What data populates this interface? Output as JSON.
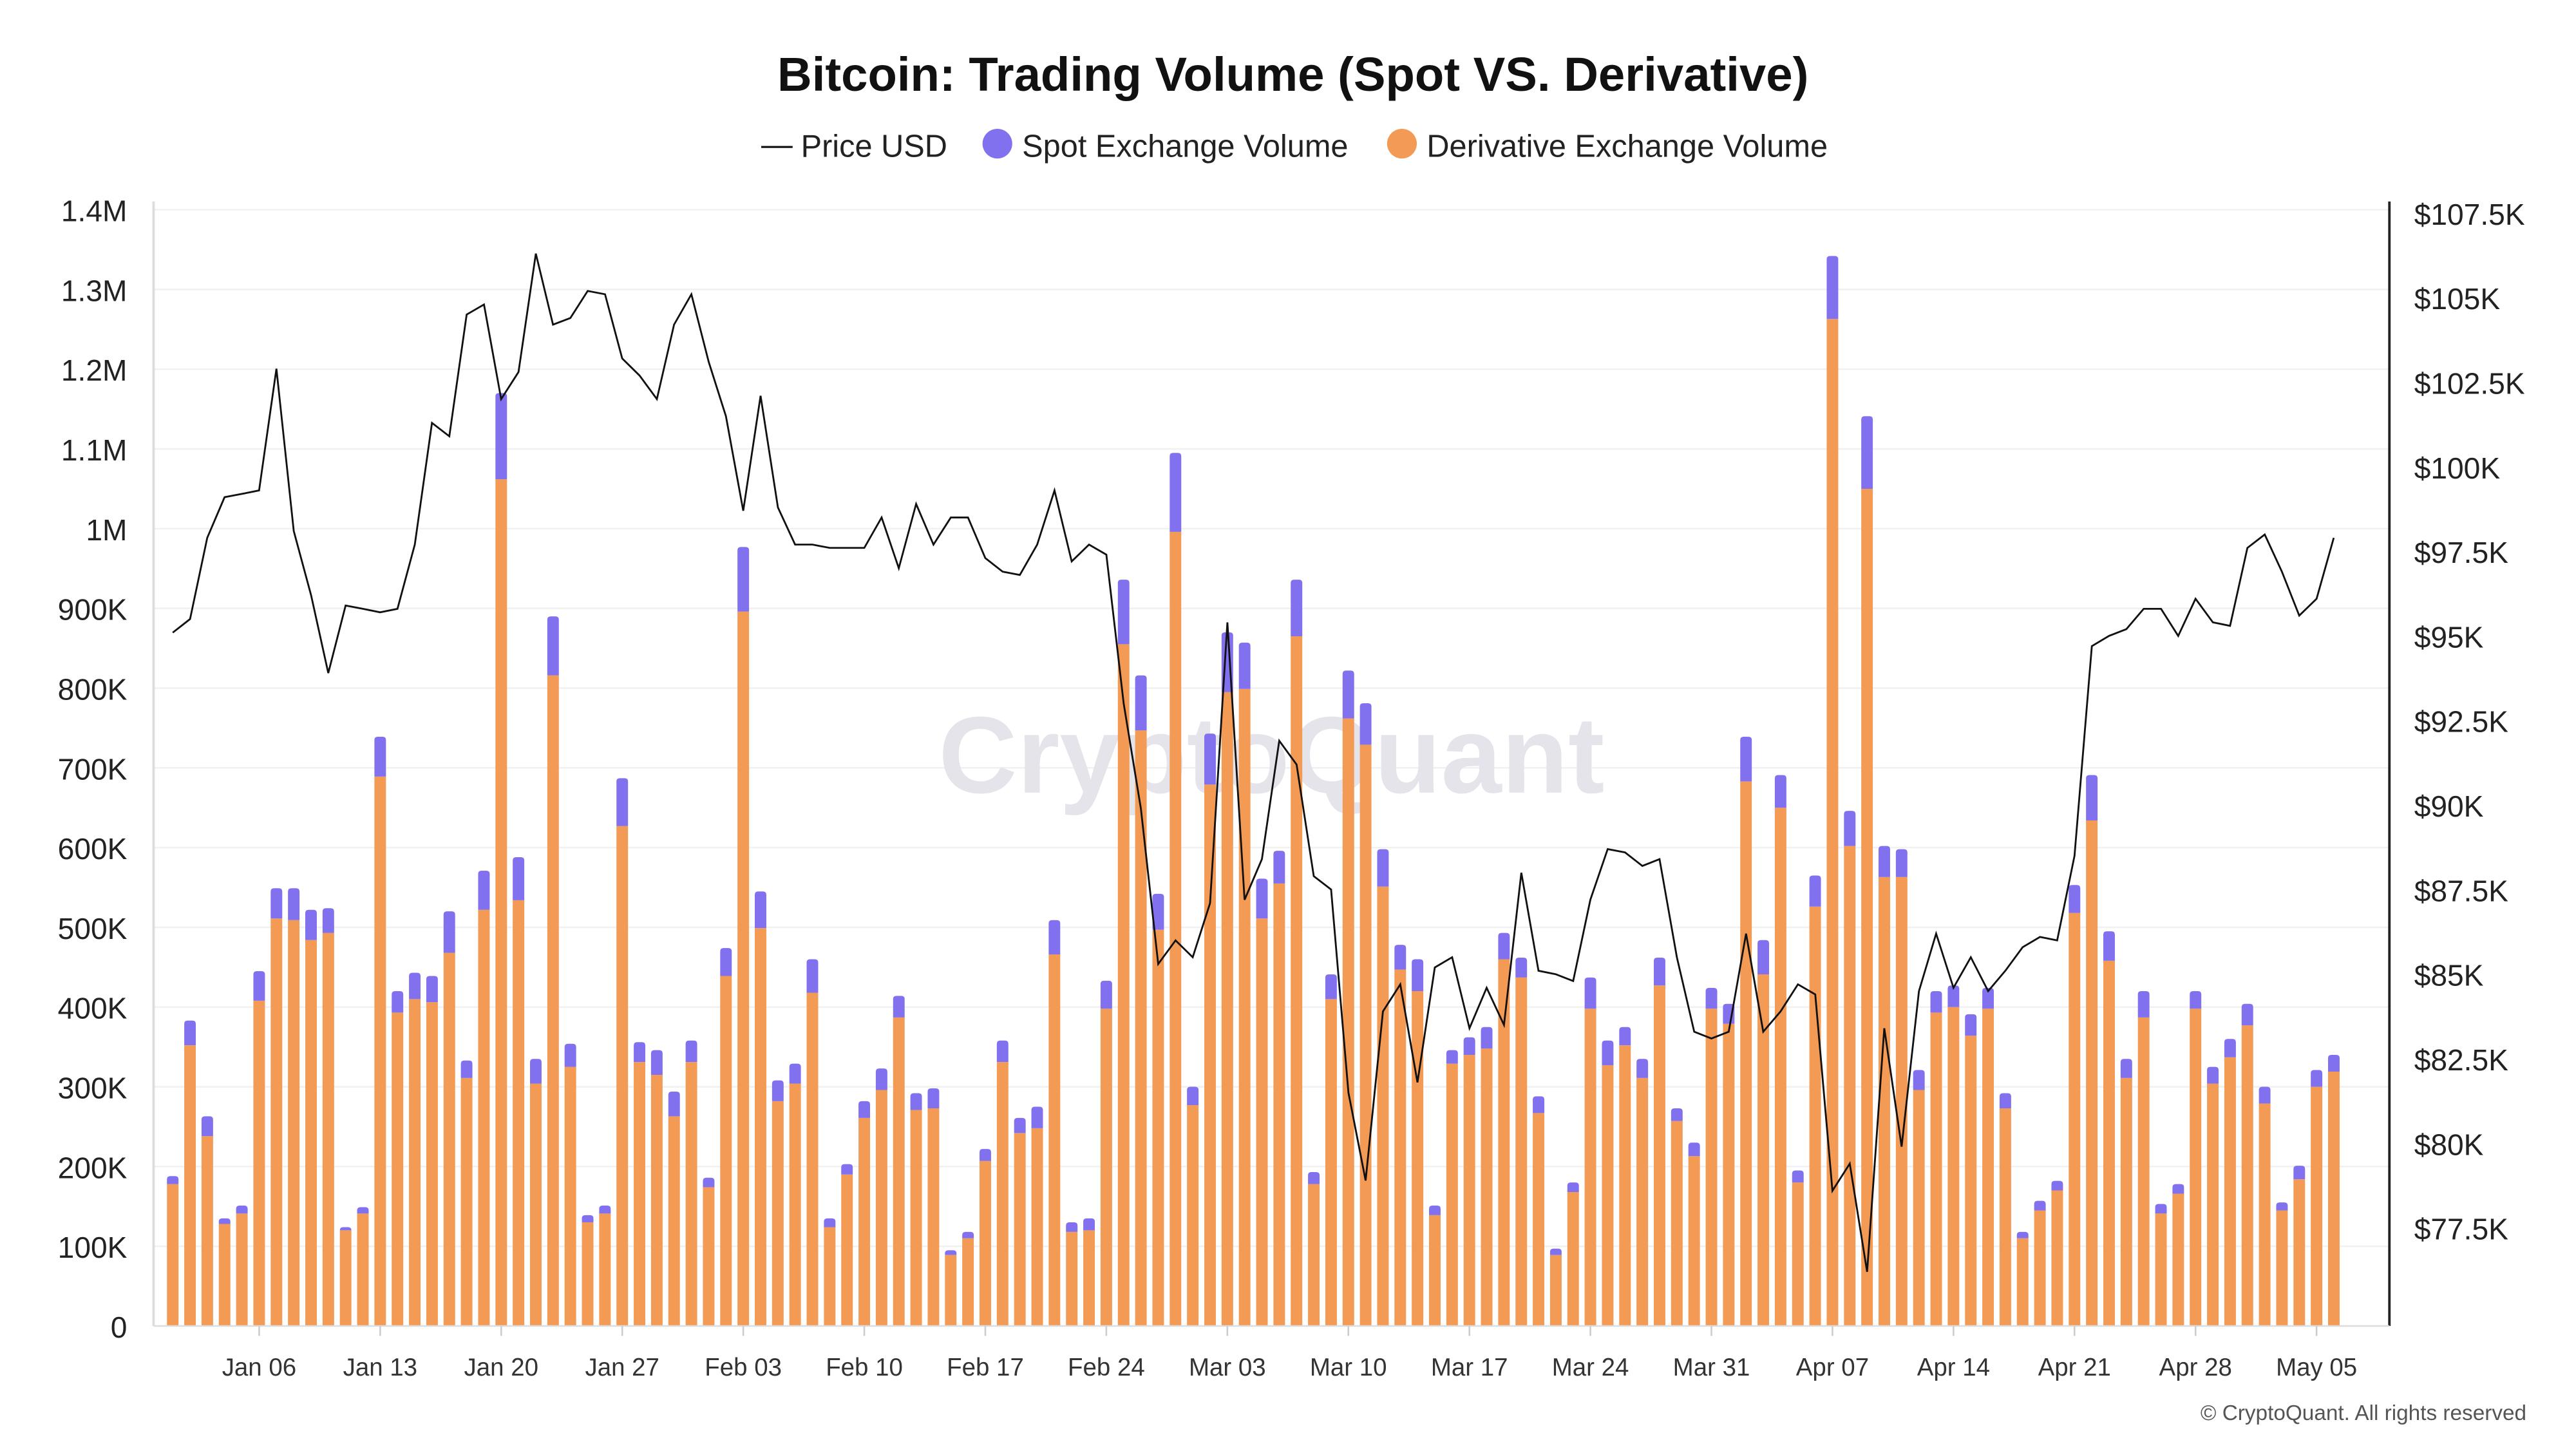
{
  "chart_data": {
    "type": "bar+line",
    "title": "Bitcoin: Trading Volume (Spot VS. Derivative)",
    "legend": [
      {
        "name": "Price USD",
        "color": "#111111",
        "marker": "line"
      },
      {
        "name": "Spot Exchange Volume",
        "color": "#8271EE",
        "marker": "circle"
      },
      {
        "name": "Derivative Exchange Volume",
        "color": "#F39A55",
        "marker": "circle"
      }
    ],
    "legend_placement": "top-center",
    "watermark": "CryptoQuant",
    "copyright": "© CryptoQuant. All rights reserved",
    "stacked": true,
    "grid": true,
    "start_date": "2025-01-01",
    "x_tick_labels": [
      "Jan 06",
      "Jan 13",
      "Jan 20",
      "Jan 27",
      "Feb 03",
      "Feb 10",
      "Feb 17",
      "Feb 24",
      "Mar 03",
      "Mar 10",
      "Mar 17",
      "Mar 24",
      "Mar 31",
      "Apr 07",
      "Apr 14",
      "Apr 21",
      "Apr 28",
      "May 05"
    ],
    "y_left": {
      "ylim": [
        0,
        1400000
      ],
      "tick_labels": [
        "0",
        "100K",
        "200K",
        "300K",
        "400K",
        "500K",
        "600K",
        "700K",
        "800K",
        "900K",
        "1M",
        "1.1M",
        "1.2M",
        "1.3M",
        "1.4M"
      ]
    },
    "y_right": {
      "ylim": [
        74600,
        107600
      ],
      "ticks": [
        77500,
        80000,
        82500,
        85000,
        87500,
        90000,
        92500,
        95000,
        97500,
        100000,
        102500,
        105000,
        107500
      ],
      "tick_labels": [
        "$77.5K",
        "$80K",
        "$82.5K",
        "$85K",
        "$87.5K",
        "$90K",
        "$92.5K",
        "$95K",
        "$97.5K",
        "$100K",
        "$102.5K",
        "$105K",
        "$107.5K"
      ]
    },
    "series": [
      {
        "name": "Derivative Exchange Volume",
        "axis": "left",
        "values": [
          178000,
          352000,
          238000,
          128000,
          141000,
          408000,
          511000,
          509000,
          484000,
          493000,
          120000,
          141000,
          689000,
          393000,
          410000,
          406000,
          468000,
          311000,
          522000,
          1062000,
          534000,
          304000,
          816000,
          325000,
          130000,
          141000,
          627000,
          331000,
          315000,
          263000,
          331000,
          174000,
          439000,
          896000,
          499000,
          282000,
          304000,
          418000,
          124000,
          190000,
          261000,
          296000,
          387000,
          271000,
          273000,
          89000,
          110000,
          207000,
          331000,
          242000,
          248000,
          466000,
          118000,
          120000,
          398000,
          855000,
          747000,
          497000,
          996000,
          277000,
          679000,
          795000,
          799000,
          511000,
          555000,
          865000,
          178000,
          410000,
          762000,
          729000,
          551000,
          447000,
          420000,
          139000,
          329000,
          340000,
          348000,
          460000,
          437000,
          267000,
          89000,
          168000,
          398000,
          327000,
          352000,
          311000,
          427000,
          257000,
          213000,
          398000,
          379000,
          683000,
          441000,
          650000,
          180000,
          526000,
          1263000,
          602000,
          1050000,
          563000,
          563000,
          296000,
          393000,
          400000,
          364000,
          398000,
          273000,
          110000,
          145000,
          170000,
          518000,
          634000,
          458000,
          311000,
          387000,
          141000,
          166000,
          398000,
          304000,
          337000,
          377000,
          279000,
          145000,
          184000,
          300000,
          319000
        ]
      },
      {
        "name": "Spot Exchange Volume",
        "axis": "left",
        "values": [
          10000,
          31000,
          25000,
          7000,
          10000,
          37000,
          38000,
          40000,
          38000,
          31000,
          4000,
          8000,
          50000,
          27000,
          33000,
          33000,
          52000,
          22000,
          49000,
          108000,
          54000,
          31000,
          74000,
          29000,
          9000,
          10000,
          60000,
          25000,
          31000,
          31000,
          27000,
          12000,
          35000,
          81000,
          46000,
          26000,
          25000,
          42000,
          11000,
          13000,
          21000,
          27000,
          27000,
          21000,
          25000,
          6000,
          8000,
          15000,
          27000,
          19000,
          27000,
          43000,
          12000,
          15000,
          35000,
          81000,
          69000,
          45000,
          99000,
          23000,
          64000,
          75000,
          58000,
          50000,
          41000,
          71000,
          15000,
          31000,
          60000,
          52000,
          47000,
          31000,
          40000,
          12000,
          17000,
          22000,
          27000,
          33000,
          25000,
          21000,
          8000,
          12000,
          39000,
          31000,
          23000,
          24000,
          35000,
          16000,
          17000,
          26000,
          25000,
          56000,
          43000,
          41000,
          15000,
          39000,
          79000,
          44000,
          91000,
          39000,
          35000,
          25000,
          27000,
          27000,
          27000,
          26000,
          19000,
          8000,
          12000,
          12000,
          35000,
          57000,
          37000,
          24000,
          33000,
          12000,
          12000,
          22000,
          21000,
          23000,
          27000,
          21000,
          10000,
          17000,
          21000,
          21000
        ]
      },
      {
        "name": "Price USD",
        "axis": "right",
        "type": "line",
        "values": [
          95100,
          95500,
          97900,
          99100,
          99200,
          99300,
          102900,
          98100,
          96200,
          93900,
          95900,
          95800,
          95700,
          95800,
          97700,
          101300,
          100900,
          104500,
          104800,
          102000,
          102800,
          106300,
          104200,
          104400,
          105200,
          105100,
          103200,
          102700,
          102000,
          104200,
          105100,
          103100,
          101500,
          98700,
          102100,
          98800,
          97700,
          97700,
          97600,
          97600,
          97600,
          98500,
          97000,
          98900,
          97700,
          98500,
          98500,
          97300,
          96900,
          96800,
          97700,
          99300,
          97200,
          97700,
          97400,
          93000,
          89900,
          85300,
          86000,
          85500,
          87100,
          95400,
          87200,
          88400,
          91900,
          91200,
          87900,
          87500,
          81500,
          78900,
          83900,
          84700,
          81800,
          85200,
          85500,
          83400,
          84600,
          83500,
          88000,
          85100,
          85000,
          84800,
          87200,
          88700,
          88600,
          88200,
          88400,
          85500,
          83300,
          83100,
          83300,
          86200,
          83300,
          83900,
          84700,
          84400,
          78600,
          79400,
          76200,
          83400,
          79900,
          84500,
          86200,
          84600,
          85500,
          84500,
          85100,
          85800,
          86100,
          86000,
          88500,
          94700,
          95000,
          95200,
          95800,
          95800,
          95000,
          96100,
          95400,
          95300,
          97600,
          98000,
          96900,
          95600,
          96100,
          97900
        ]
      }
    ]
  }
}
